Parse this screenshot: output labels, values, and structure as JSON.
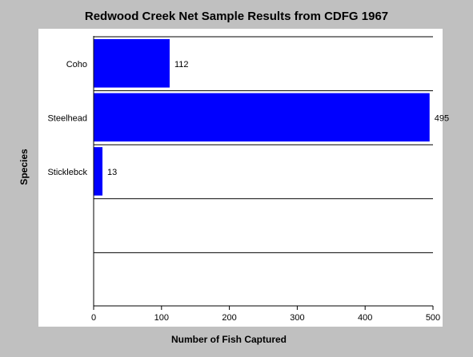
{
  "chart_data": {
    "type": "bar",
    "orientation": "horizontal",
    "title": "Redwood Creek Net Sample Results from CDFG 1967",
    "xlabel": "Number of Fish Captured",
    "ylabel": "Species",
    "categories": [
      "Coho",
      "Steelhead",
      "Sticklebck",
      "",
      ""
    ],
    "values": [
      112,
      495,
      13,
      null,
      null
    ],
    "xlim": [
      0,
      500
    ],
    "xticks": [
      0,
      100,
      200,
      300,
      400,
      500
    ],
    "bar_color": "#0000ff",
    "background": "#c0c0c0",
    "plot_background": "#ffffff",
    "grid": "horizontal category separators"
  }
}
